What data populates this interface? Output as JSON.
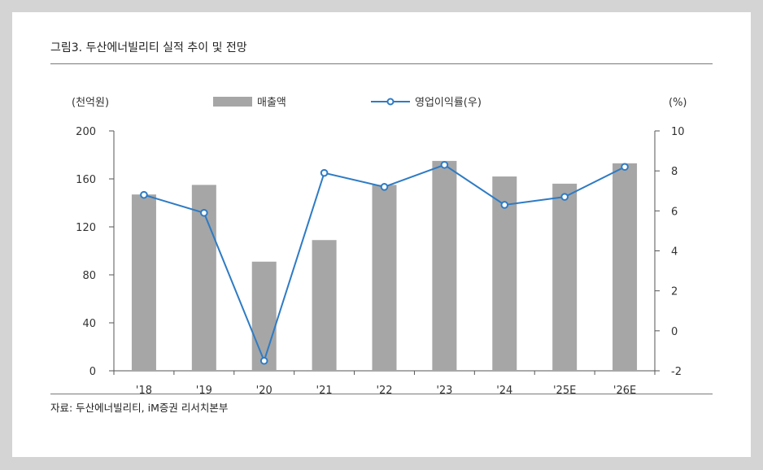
{
  "title": "그림3. 두산에너빌리티 실적 추이 및 전망",
  "source": "자료: 두산에너빌리티, iM증권 리서치본부",
  "left_unit": "(천억원)",
  "right_unit": "(%)",
  "colors": {
    "bar": "#a6a6a6",
    "line": "#2e7bc4",
    "axis": "#555555"
  },
  "chart_data": {
    "type": "bar+line",
    "categories": [
      "'18",
      "'19",
      "'20",
      "'21",
      "'22",
      "'23",
      "'24",
      "'25E",
      "'26E"
    ],
    "series": [
      {
        "name": "매출액",
        "type": "bar",
        "axis": "left",
        "values": [
          147,
          155,
          91,
          109,
          155,
          175,
          162,
          156,
          173
        ]
      },
      {
        "name": "영업이익률(우)",
        "type": "line",
        "axis": "right",
        "values": [
          6.8,
          5.9,
          -1.5,
          7.9,
          7.2,
          8.3,
          6.3,
          6.7,
          8.2
        ]
      }
    ],
    "left_axis": {
      "min": 0,
      "max": 200,
      "ticks": [
        0,
        40,
        80,
        120,
        160,
        200
      ]
    },
    "right_axis": {
      "min": -2,
      "max": 10,
      "ticks": [
        -2,
        0,
        2,
        4,
        6,
        8,
        10
      ]
    },
    "grid": false,
    "legend_position": "top-center"
  }
}
